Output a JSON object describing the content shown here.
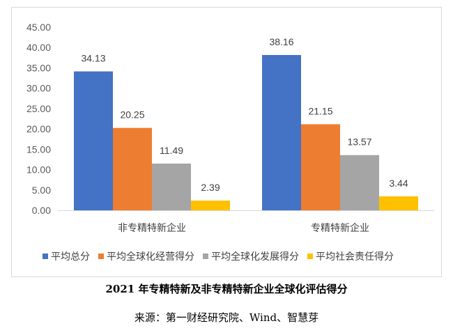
{
  "chart_data": {
    "type": "bar",
    "categories": [
      "非专精特新企业",
      "专精特新企业"
    ],
    "series": [
      {
        "name": "平均总分",
        "color": "#4472C4",
        "values": [
          34.13,
          38.16
        ]
      },
      {
        "name": "平均全球化经营得分",
        "color": "#ED7D31",
        "values": [
          20.25,
          21.15
        ]
      },
      {
        "name": "平均全球化发展得分",
        "color": "#A5A5A5",
        "values": [
          11.49,
          13.57
        ]
      },
      {
        "name": "平均社会责任得分",
        "color": "#FFC000",
        "values": [
          2.39,
          3.44
        ]
      }
    ],
    "ylim": [
      0,
      45
    ],
    "yticks": [
      "0.00",
      "5.00",
      "10.00",
      "15.00",
      "20.00",
      "25.00",
      "30.00",
      "35.00",
      "40.00",
      "45.00"
    ],
    "grid": false,
    "legend": "bottom",
    "xlabel": "",
    "ylabel": ""
  },
  "caption": {
    "title": "2021 年专精特新及非专精特新企业全球化评估得分",
    "source": "来源：第一财经研究院、Wind、智慧芽"
  }
}
